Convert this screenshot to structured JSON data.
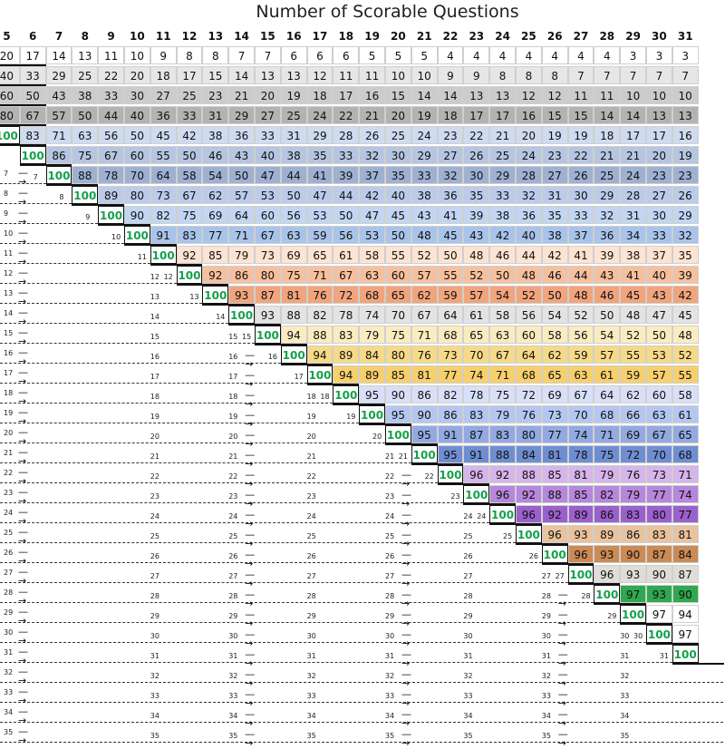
{
  "title": "Number of Scorable Questions",
  "columns": [
    5,
    6,
    7,
    8,
    9,
    10,
    11,
    12,
    13,
    14,
    15,
    16,
    17,
    18,
    19,
    20,
    21,
    22,
    23,
    24,
    25,
    26,
    27,
    28,
    29,
    30,
    31
  ],
  "rows": [
    {
      "label": "",
      "values": [
        20,
        17,
        14,
        13,
        11,
        10,
        9,
        8,
        8,
        7,
        7,
        6,
        6,
        6,
        5,
        5,
        5,
        4,
        4,
        4,
        4,
        4,
        4,
        4,
        3,
        3,
        3
      ]
    },
    {
      "label": "",
      "values": [
        40,
        33,
        29,
        25,
        22,
        20,
        18,
        17,
        15,
        14,
        13,
        13,
        12,
        11,
        11,
        10,
        10,
        9,
        9,
        8,
        8,
        8,
        7,
        7,
        7,
        7,
        7
      ]
    },
    {
      "label": "",
      "values": [
        60,
        50,
        43,
        38,
        33,
        30,
        27,
        25,
        23,
        21,
        20,
        19,
        18,
        17,
        16,
        15,
        14,
        14,
        13,
        13,
        12,
        12,
        11,
        11,
        10,
        10,
        10
      ]
    },
    {
      "label": "",
      "values": [
        80,
        67,
        57,
        50,
        44,
        40,
        36,
        33,
        31,
        29,
        27,
        25,
        24,
        22,
        21,
        20,
        19,
        18,
        17,
        17,
        16,
        15,
        15,
        14,
        14,
        13,
        13
      ]
    },
    {
      "label": "",
      "values": [
        100,
        83,
        71,
        63,
        56,
        50,
        45,
        42,
        38,
        36,
        33,
        31,
        29,
        28,
        26,
        25,
        24,
        23,
        22,
        21,
        20,
        19,
        19,
        18,
        17,
        17,
        16
      ]
    },
    {
      "label": "",
      "values": [
        null,
        100,
        86,
        75,
        67,
        60,
        55,
        50,
        46,
        43,
        40,
        38,
        35,
        33,
        32,
        30,
        29,
        27,
        26,
        25,
        24,
        23,
        22,
        21,
        21,
        20,
        19
      ]
    },
    {
      "label": "7",
      "values": [
        null,
        null,
        100,
        88,
        78,
        70,
        64,
        58,
        54,
        50,
        47,
        44,
        41,
        39,
        37,
        35,
        33,
        32,
        30,
        29,
        28,
        27,
        26,
        25,
        24,
        23,
        23
      ]
    },
    {
      "label": "8",
      "values": [
        null,
        null,
        null,
        100,
        89,
        80,
        73,
        67,
        62,
        57,
        53,
        50,
        47,
        44,
        42,
        40,
        38,
        36,
        35,
        33,
        32,
        31,
        30,
        29,
        28,
        27,
        26
      ]
    },
    {
      "label": "9",
      "values": [
        null,
        null,
        null,
        null,
        100,
        90,
        82,
        75,
        69,
        64,
        60,
        56,
        53,
        50,
        47,
        45,
        43,
        41,
        39,
        38,
        36,
        35,
        33,
        32,
        31,
        30,
        29
      ]
    },
    {
      "label": "10",
      "values": [
        null,
        null,
        null,
        null,
        null,
        100,
        91,
        83,
        77,
        71,
        67,
        63,
        59,
        56,
        53,
        50,
        48,
        45,
        43,
        42,
        40,
        38,
        37,
        36,
        34,
        33,
        32
      ]
    },
    {
      "label": "11",
      "values": [
        null,
        null,
        null,
        null,
        null,
        null,
        100,
        92,
        85,
        79,
        73,
        69,
        65,
        61,
        58,
        55,
        52,
        50,
        48,
        46,
        44,
        42,
        41,
        39,
        38,
        37,
        35
      ]
    },
    {
      "label": "12",
      "values": [
        null,
        null,
        null,
        null,
        null,
        null,
        null,
        100,
        92,
        86,
        80,
        75,
        71,
        67,
        63,
        60,
        57,
        55,
        52,
        50,
        48,
        46,
        44,
        43,
        41,
        40,
        39
      ]
    },
    {
      "label": "13",
      "values": [
        null,
        null,
        null,
        null,
        null,
        null,
        null,
        null,
        100,
        93,
        87,
        81,
        76,
        72,
        68,
        65,
        62,
        59,
        57,
        54,
        52,
        50,
        48,
        46,
        45,
        43,
        42
      ]
    },
    {
      "label": "14",
      "values": [
        null,
        null,
        null,
        null,
        null,
        null,
        null,
        null,
        null,
        100,
        93,
        88,
        82,
        78,
        74,
        70,
        67,
        64,
        61,
        58,
        56,
        54,
        52,
        50,
        48,
        47,
        45
      ]
    },
    {
      "label": "15",
      "values": [
        null,
        null,
        null,
        null,
        null,
        null,
        null,
        null,
        null,
        null,
        100,
        94,
        88,
        83,
        79,
        75,
        71,
        68,
        65,
        63,
        60,
        58,
        56,
        54,
        52,
        50,
        48
      ]
    },
    {
      "label": "16",
      "values": [
        null,
        null,
        null,
        null,
        null,
        null,
        null,
        null,
        null,
        null,
        null,
        100,
        94,
        89,
        84,
        80,
        76,
        73,
        70,
        67,
        64,
        62,
        59,
        57,
        55,
        53,
        52
      ]
    },
    {
      "label": "17",
      "values": [
        null,
        null,
        null,
        null,
        null,
        null,
        null,
        null,
        null,
        null,
        null,
        null,
        100,
        94,
        89,
        85,
        81,
        77,
        74,
        71,
        68,
        65,
        63,
        61,
        59,
        57,
        55
      ]
    },
    {
      "label": "18",
      "values": [
        null,
        null,
        null,
        null,
        null,
        null,
        null,
        null,
        null,
        null,
        null,
        null,
        null,
        100,
        95,
        90,
        86,
        82,
        78,
        75,
        72,
        69,
        67,
        64,
        62,
        60,
        58
      ]
    },
    {
      "label": "19",
      "values": [
        null,
        null,
        null,
        null,
        null,
        null,
        null,
        null,
        null,
        null,
        null,
        null,
        null,
        null,
        100,
        95,
        90,
        86,
        83,
        79,
        76,
        73,
        70,
        68,
        66,
        63,
        61
      ]
    },
    {
      "label": "20",
      "values": [
        null,
        null,
        null,
        null,
        null,
        null,
        null,
        null,
        null,
        null,
        null,
        null,
        null,
        null,
        null,
        100,
        95,
        91,
        87,
        83,
        80,
        77,
        74,
        71,
        69,
        67,
        65
      ]
    },
    {
      "label": "21",
      "values": [
        null,
        null,
        null,
        null,
        null,
        null,
        null,
        null,
        null,
        null,
        null,
        null,
        null,
        null,
        null,
        null,
        100,
        95,
        91,
        88,
        84,
        81,
        78,
        75,
        72,
        70,
        68
      ]
    },
    {
      "label": "22",
      "values": [
        null,
        null,
        null,
        null,
        null,
        null,
        null,
        null,
        null,
        null,
        null,
        null,
        null,
        null,
        null,
        null,
        null,
        100,
        96,
        92,
        88,
        85,
        81,
        79,
        76,
        73,
        71
      ]
    },
    {
      "label": "23",
      "values": [
        null,
        null,
        null,
        null,
        null,
        null,
        null,
        null,
        null,
        null,
        null,
        null,
        null,
        null,
        null,
        null,
        null,
        null,
        100,
        96,
        92,
        88,
        85,
        82,
        79,
        77,
        74
      ]
    },
    {
      "label": "24",
      "values": [
        null,
        null,
        null,
        null,
        null,
        null,
        null,
        null,
        null,
        null,
        null,
        null,
        null,
        null,
        null,
        null,
        null,
        null,
        null,
        100,
        96,
        92,
        89,
        86,
        83,
        80,
        77
      ]
    },
    {
      "label": "25",
      "values": [
        null,
        null,
        null,
        null,
        null,
        null,
        null,
        null,
        null,
        null,
        null,
        null,
        null,
        null,
        null,
        null,
        null,
        null,
        null,
        null,
        100,
        96,
        93,
        89,
        86,
        83,
        81
      ]
    },
    {
      "label": "26",
      "values": [
        null,
        null,
        null,
        null,
        null,
        null,
        null,
        null,
        null,
        null,
        null,
        null,
        null,
        null,
        null,
        null,
        null,
        null,
        null,
        null,
        null,
        100,
        96,
        93,
        90,
        87,
        84
      ]
    },
    {
      "label": "27",
      "values": [
        null,
        null,
        null,
        null,
        null,
        null,
        null,
        null,
        null,
        null,
        null,
        null,
        null,
        null,
        null,
        null,
        null,
        null,
        null,
        null,
        null,
        null,
        100,
        96,
        93,
        90,
        87
      ]
    },
    {
      "label": "28",
      "values": [
        null,
        null,
        null,
        null,
        null,
        null,
        null,
        null,
        null,
        null,
        null,
        null,
        null,
        null,
        null,
        null,
        null,
        null,
        null,
        null,
        null,
        null,
        null,
        100,
        97,
        93,
        90
      ]
    },
    {
      "label": "29",
      "values": [
        null,
        null,
        null,
        null,
        null,
        null,
        null,
        null,
        null,
        null,
        null,
        null,
        null,
        null,
        null,
        null,
        null,
        null,
        null,
        null,
        null,
        null,
        null,
        null,
        100,
        97,
        94
      ]
    },
    {
      "label": "30",
      "values": [
        null,
        null,
        null,
        null,
        null,
        null,
        null,
        null,
        null,
        null,
        null,
        null,
        null,
        null,
        null,
        null,
        null,
        null,
        null,
        null,
        null,
        null,
        null,
        null,
        null,
        100,
        97
      ]
    },
    {
      "label": "31",
      "values": [
        null,
        null,
        null,
        null,
        null,
        null,
        null,
        null,
        null,
        null,
        null,
        null,
        null,
        null,
        null,
        null,
        null,
        null,
        null,
        null,
        null,
        null,
        null,
        null,
        null,
        null,
        100
      ]
    },
    {
      "label": "32",
      "values": []
    },
    {
      "label": "33",
      "values": []
    },
    {
      "label": "34",
      "values": []
    },
    {
      "label": "35",
      "values": []
    }
  ],
  "band_colors": [
    "#ffffff",
    "#e6e6e6",
    "#cccccc",
    "#b3b3b3",
    "#cfdbef",
    "#b6c6e2",
    "#9fb1d2",
    "#bccbea",
    "#c2d6f2",
    "#a9c4ea",
    "#fde3d2",
    "#f6c09e",
    "#f1a57d",
    "#e3e3e3",
    "#fbecc0",
    "#f6da87",
    "#f7d06d",
    "#d8e0f8",
    "#b4c7f1",
    "#93a9e2",
    "#6f8ed2",
    "#d6b5ea",
    "#b687db",
    "#9a61cd",
    "#e9c39e",
    "#cc8a55",
    "#e0ddd8",
    "#2fa84f"
  ],
  "hundred_color": "#12a14a"
}
